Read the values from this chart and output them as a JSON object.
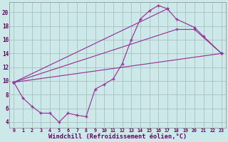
{
  "background_color": "#cce8e8",
  "grid_color": "#a0b8b8",
  "line_color": "#993399",
  "xlabel": "Windchill (Refroidissement éolien,°C)",
  "xlabel_fontsize": 6.2,
  "xlim": [
    -0.5,
    23.5
  ],
  "ylim": [
    3.2,
    21.5
  ],
  "yticks": [
    4,
    6,
    8,
    10,
    12,
    14,
    16,
    18,
    20
  ],
  "line1_x": [
    0,
    1,
    2,
    3,
    4,
    5,
    6,
    7,
    8,
    9,
    10,
    11,
    12,
    13,
    14,
    15,
    16,
    17
  ],
  "line1_y": [
    9.8,
    7.5,
    6.3,
    5.3,
    5.3,
    4.0,
    5.3,
    5.0,
    4.8,
    8.8,
    9.5,
    10.3,
    12.5,
    16.0,
    19.0,
    20.2,
    21.0,
    20.5
  ],
  "line2_x": [
    0,
    17,
    18,
    20,
    21,
    23
  ],
  "line2_y": [
    9.8,
    20.5,
    19.0,
    17.8,
    16.5,
    14.0
  ],
  "line3_x": [
    0,
    18,
    20,
    23
  ],
  "line3_y": [
    9.8,
    17.5,
    17.5,
    14.0
  ],
  "line4_x": [
    0,
    23
  ],
  "line4_y": [
    9.8,
    14.0
  ]
}
